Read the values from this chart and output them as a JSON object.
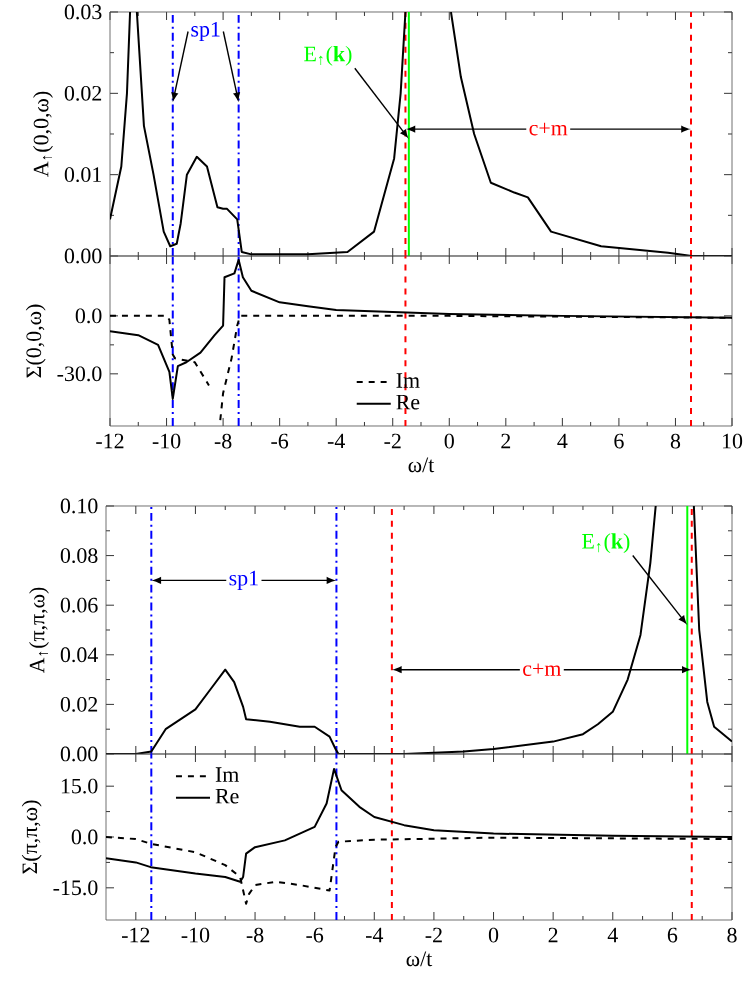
{
  "chart_data": [
    {
      "type": "line",
      "ylabel": "A$_{↑}$(0,0,ω)",
      "xlim": [
        -12,
        10
      ],
      "ylim": [
        0,
        0.03
      ],
      "xticks": [
        -12,
        -10,
        -8,
        -6,
        -4,
        -2,
        0,
        2,
        4,
        6,
        8,
        10
      ],
      "yticks": [
        {
          "value": 0,
          "label": "0.00"
        },
        {
          "value": 0.01,
          "label": "0.01"
        },
        {
          "value": 0.02,
          "label": "0.02"
        },
        {
          "value": 0.03,
          "label": "0.03"
        }
      ],
      "tick_labels": "y",
      "line_style": "solid",
      "series": [
        {
          "color": "#000000",
          "x": [
            -12,
            -11.6,
            -11.4,
            -11.29,
            -11.17,
            -11.05,
            -10.8,
            -10.46,
            -10.1,
            -9.87,
            -9.64,
            -9.5,
            -9.28,
            -8.93,
            -8.57,
            -8.2,
            -8.0,
            -7.86,
            -7.5,
            -7.34,
            -7,
            -5,
            -3.6,
            -2.66,
            -1.95,
            -1.72,
            -1.55,
            -0.7,
            0.06,
            0.41,
            0.88,
            1.47,
            2.3,
            2.78,
            3.6,
            5.37,
            7.74,
            8.57,
            10
          ],
          "values": [
            0.0045,
            0.011,
            0.02,
            0.03,
            null,
            0.03,
            0.016,
            0.01,
            0.003,
            0.0012,
            0.0015,
            0.004,
            0.01,
            0.0122,
            0.011,
            0.006,
            0.0058,
            0.0058,
            0.0045,
            0.0005,
            0.0002,
            0.0002,
            0.0005,
            0.003,
            0.012,
            0.02,
            0.03,
            null,
            0.03,
            0.022,
            0.015,
            0.009,
            0.0078,
            0.0072,
            0.003,
            0.0012,
            0.0004,
            0,
            0
          ]
        }
      ],
      "ref_lines": [
        {
          "axis": "x",
          "value": -9.78,
          "color": "#0000ff",
          "line_style": "dashdot",
          "label": "sp1"
        },
        {
          "axis": "x",
          "value": -7.45,
          "color": "#0000ff",
          "line_style": "dashdot"
        },
        {
          "axis": "x",
          "value": -1.55,
          "color": "#ff0000",
          "line_style": "dashed",
          "label": "c+m"
        },
        {
          "axis": "x",
          "value": 8.55,
          "color": "#ff0000",
          "line_style": "dashed"
        },
        {
          "axis": "x",
          "value": -1.43,
          "color": "#00ff00",
          "line_style": "solid",
          "label": "E$_{↑}$(**k**)"
        }
      ]
    },
    {
      "type": "line",
      "ylabel": "Σ(0,0,ω)",
      "xlabel": "ω/t",
      "xlim": [
        -12,
        10
      ],
      "ylim": [
        -57,
        31
      ],
      "xticks": [
        -12,
        -10,
        -8,
        -6,
        -4,
        -2,
        0,
        2,
        4,
        6,
        8,
        10
      ],
      "yticks": [
        {
          "value": -30,
          "label": "-30.0"
        },
        {
          "value": 0,
          "label": "0.0"
        }
      ],
      "legend": "bottom",
      "series": [
        {
          "name": "Im",
          "color": "#000000",
          "line_style": "dashed",
          "x": [
            -12,
            -10,
            -9.9,
            -9.78,
            -9.7,
            -9.0,
            -8.5,
            -8.35,
            -8.3,
            -8.2,
            -8.1,
            -8.0,
            -7.7,
            -7.5,
            -7.4,
            -5,
            0,
            10
          ],
          "values": [
            0,
            0,
            -2,
            -20,
            -22,
            -24,
            -36,
            null,
            null,
            null,
            -54,
            -40,
            -22,
            -5,
            0,
            0,
            0,
            -1
          ]
        },
        {
          "name": "Re",
          "color": "#000000",
          "line_style": "solid",
          "x": [
            -12,
            -11,
            -10.3,
            -9.9,
            -9.78,
            -9.6,
            -9.3,
            -8.8,
            -8.3,
            -8.0,
            -7.95,
            -7.6,
            -7.45,
            -7.3,
            -7,
            -6,
            -5,
            -4,
            -2,
            0,
            4,
            10
          ],
          "values": [
            -8,
            -10,
            -15,
            -29,
            -43,
            -26,
            -24,
            -19,
            -10,
            -5,
            20,
            22,
            29,
            20,
            13,
            7,
            5,
            3,
            2,
            1,
            0,
            -1
          ]
        }
      ],
      "ref_lines": [
        {
          "axis": "x",
          "value": -9.78,
          "color": "#0000ff",
          "line_style": "dashdot"
        },
        {
          "axis": "x",
          "value": -7.45,
          "color": "#0000ff",
          "line_style": "dashdot"
        },
        {
          "axis": "x",
          "value": -1.55,
          "color": "#ff0000",
          "line_style": "dashed"
        },
        {
          "axis": "x",
          "value": 8.55,
          "color": "#ff0000",
          "line_style": "dashed"
        }
      ]
    },
    {
      "type": "line",
      "ylabel": "A$_{↑}$(π,π,ω)",
      "xlim": [
        -13,
        8
      ],
      "ylim": [
        0,
        0.1
      ],
      "xticks": [
        -12,
        -10,
        -8,
        -6,
        -4,
        -2,
        0,
        2,
        4,
        6,
        8
      ],
      "yticks": [
        {
          "value": 0,
          "label": "0.00"
        },
        {
          "value": 0.02,
          "label": "0.02"
        },
        {
          "value": 0.04,
          "label": "0.04"
        },
        {
          "value": 0.06,
          "label": "0.06"
        },
        {
          "value": 0.08,
          "label": "0.08"
        },
        {
          "value": 0.1,
          "label": "0.10"
        }
      ],
      "tick_labels": "y",
      "line_style": "solid",
      "series": [
        {
          "color": "#000000",
          "x": [
            -13,
            -12,
            -11.48,
            -11.0,
            -10,
            -9.5,
            -9.0,
            -8.7,
            -8.4,
            -8.3,
            -7.5,
            -6.5,
            -6,
            -5.5,
            -5.3,
            -5.2,
            -3,
            -1,
            0,
            2,
            3,
            3.5,
            4,
            4.5,
            4.93,
            5.26,
            5.44,
            6.1,
            6.72,
            6.9,
            7.17,
            7.4,
            8
          ],
          "values": [
            0,
            0,
            0.001,
            0.01,
            0.018,
            0.026,
            0.034,
            0.029,
            0.019,
            0.014,
            0.013,
            0.011,
            0.011,
            0.007,
            0.002,
            0,
            0,
            0.001,
            0.002,
            0.005,
            0.008,
            0.012,
            0.017,
            0.03,
            0.048,
            0.077,
            0.1,
            null,
            0.1,
            0.05,
            0.021,
            0.011,
            0.005
          ]
        }
      ],
      "ref_lines": [
        {
          "axis": "x",
          "value": -11.48,
          "color": "#0000ff",
          "line_style": "dashdot",
          "label": "sp1"
        },
        {
          "axis": "x",
          "value": -5.27,
          "color": "#0000ff",
          "line_style": "dashdot"
        },
        {
          "axis": "x",
          "value": -3.41,
          "color": "#ff0000",
          "line_style": "dashed",
          "label": "c+m"
        },
        {
          "axis": "x",
          "value": 6.65,
          "color": "#ff0000",
          "line_style": "dashed"
        },
        {
          "axis": "x",
          "value": 6.5,
          "color": "#00ff00",
          "line_style": "solid",
          "label": "E$_{↑}$(**k**)"
        }
      ]
    },
    {
      "type": "line",
      "ylabel": "Σ(π,π,ω)",
      "xlabel": "ω/t",
      "xlim": [
        -13,
        8
      ],
      "ylim": [
        -24.5,
        24.5
      ],
      "xticks": [
        -12,
        -10,
        -8,
        -6,
        -4,
        -2,
        0,
        2,
        4,
        6,
        8
      ],
      "yticks": [
        {
          "value": -15,
          "label": "-15.0"
        },
        {
          "value": 0,
          "label": "0.0"
        },
        {
          "value": 15,
          "label": "15.0"
        }
      ],
      "legend": "top left",
      "series": [
        {
          "name": "Im",
          "color": "#000000",
          "line_style": "dashed",
          "x": [
            -13,
            -12,
            -11.5,
            -10,
            -9,
            -8.5,
            -8.3,
            -8.2,
            -8,
            -7.3,
            -6.5,
            -5.5,
            -5.3,
            -5.2,
            -4,
            0,
            8
          ],
          "values": [
            0,
            -0.6,
            -2,
            -4.5,
            -8.3,
            -11.8,
            -19.7,
            -16.8,
            -14.2,
            -13.2,
            -14.2,
            -15.8,
            -3,
            -1.4,
            -0.8,
            -0.2,
            -0.6
          ]
        },
        {
          "name": "Re",
          "color": "#000000",
          "line_style": "solid",
          "x": [
            -13,
            -12,
            -11.5,
            -10,
            -9,
            -8.5,
            -8.4,
            -8.3,
            -8,
            -7,
            -6,
            -5.6,
            -5.35,
            -5.1,
            -4.5,
            -4,
            -3,
            -2,
            0,
            4,
            8
          ],
          "values": [
            -6.3,
            -7.5,
            -8.9,
            -10.8,
            -11.8,
            -13.2,
            -11.8,
            -4.9,
            -3,
            -1,
            3,
            9.9,
            20.1,
            13.8,
            8.9,
            5.9,
            3.5,
            2,
            1,
            0.4,
            0
          ]
        }
      ],
      "ref_lines": [
        {
          "axis": "x",
          "value": -11.48,
          "color": "#0000ff",
          "line_style": "dashdot"
        },
        {
          "axis": "x",
          "value": -5.27,
          "color": "#0000ff",
          "line_style": "dashdot"
        },
        {
          "axis": "x",
          "value": -3.41,
          "color": "#ff0000",
          "line_style": "dashed"
        },
        {
          "axis": "x",
          "value": 6.65,
          "color": "#ff0000",
          "line_style": "dashed"
        }
      ]
    }
  ]
}
